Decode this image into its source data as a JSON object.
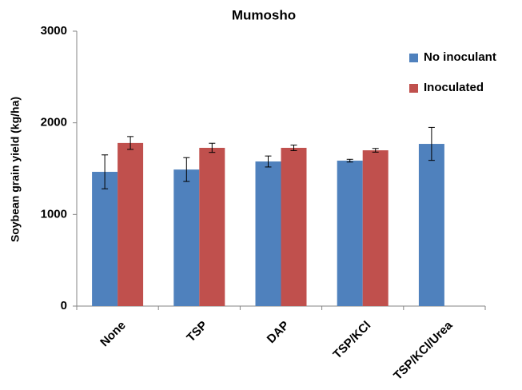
{
  "chart_data": {
    "type": "bar",
    "title": "Mumosho",
    "y_label": "Soybean grain yield (kg/ha)",
    "categories": [
      "None",
      "TSP",
      "DAP",
      "TSP/KCl",
      "TSP/KCl/Urea"
    ],
    "series": [
      {
        "name": "No inoculant",
        "color": "#4f81bd",
        "values": [
          1465,
          1490,
          1578,
          1587,
          1770
        ],
        "errors": [
          185,
          130,
          60,
          15,
          180
        ]
      },
      {
        "name": "Inoculated",
        "color": "#c0504d",
        "values": [
          1780,
          1727,
          1727,
          1700,
          null
        ],
        "errors": [
          70,
          50,
          30,
          20,
          null
        ]
      }
    ],
    "ylim": [
      0,
      3000
    ],
    "yticks": [
      0,
      1000,
      2000,
      3000
    ],
    "grid": false,
    "legend": "top-right"
  }
}
